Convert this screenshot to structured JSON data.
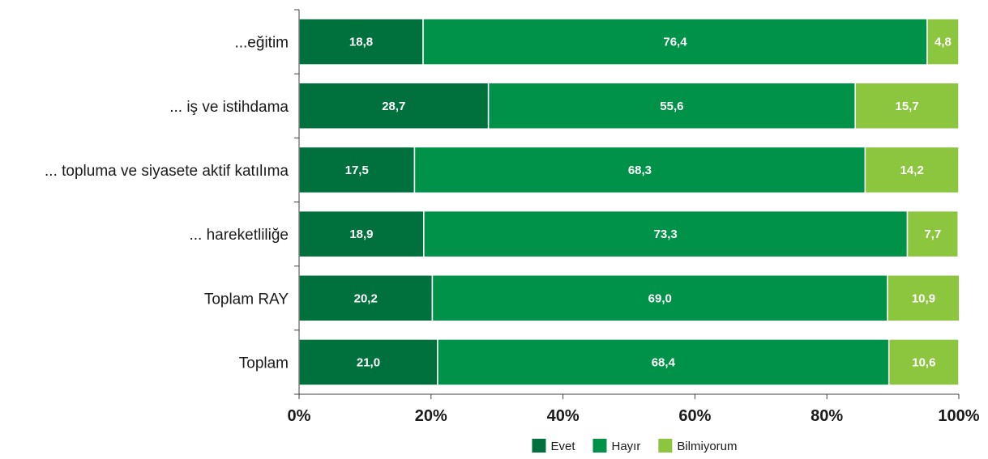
{
  "chart_data": {
    "type": "bar",
    "orientation": "horizontal",
    "stacked": true,
    "categories": [
      "...eğitim",
      "... iş ve istihdama",
      "... topluma ve siyasete aktif katılıma",
      "... hareketliliğe",
      "Toplam RAY",
      "Toplam"
    ],
    "series": [
      {
        "name": "Evet",
        "color": "#00703c",
        "values": [
          18.8,
          28.7,
          17.5,
          18.9,
          20.2,
          21.0
        ],
        "labels": [
          "18,8",
          "28,7",
          "17,5",
          "18,9",
          "20,2",
          "21,0"
        ]
      },
      {
        "name": "Hayır",
        "color": "#009248",
        "values": [
          76.4,
          55.6,
          68.3,
          73.3,
          69.0,
          68.4
        ],
        "labels": [
          "76,4",
          "55,6",
          "68,3",
          "73,3",
          "69,0",
          "68,4"
        ]
      },
      {
        "name": "Bilmiyorum",
        "color": "#8cc63f",
        "values": [
          4.8,
          15.7,
          14.2,
          7.7,
          10.9,
          10.6
        ],
        "labels": [
          "4,8",
          "15,7",
          "14,2",
          "7,7",
          "10,9",
          "10,6"
        ]
      }
    ],
    "xlim": [
      0,
      100
    ],
    "xticks": [
      0,
      20,
      40,
      60,
      80,
      100
    ],
    "xtick_labels": [
      "0%",
      "20%",
      "40%",
      "60%",
      "80%",
      "100%"
    ],
    "title": "",
    "xlabel": "",
    "ylabel": "",
    "grid": false,
    "legend_position": "bottom"
  }
}
